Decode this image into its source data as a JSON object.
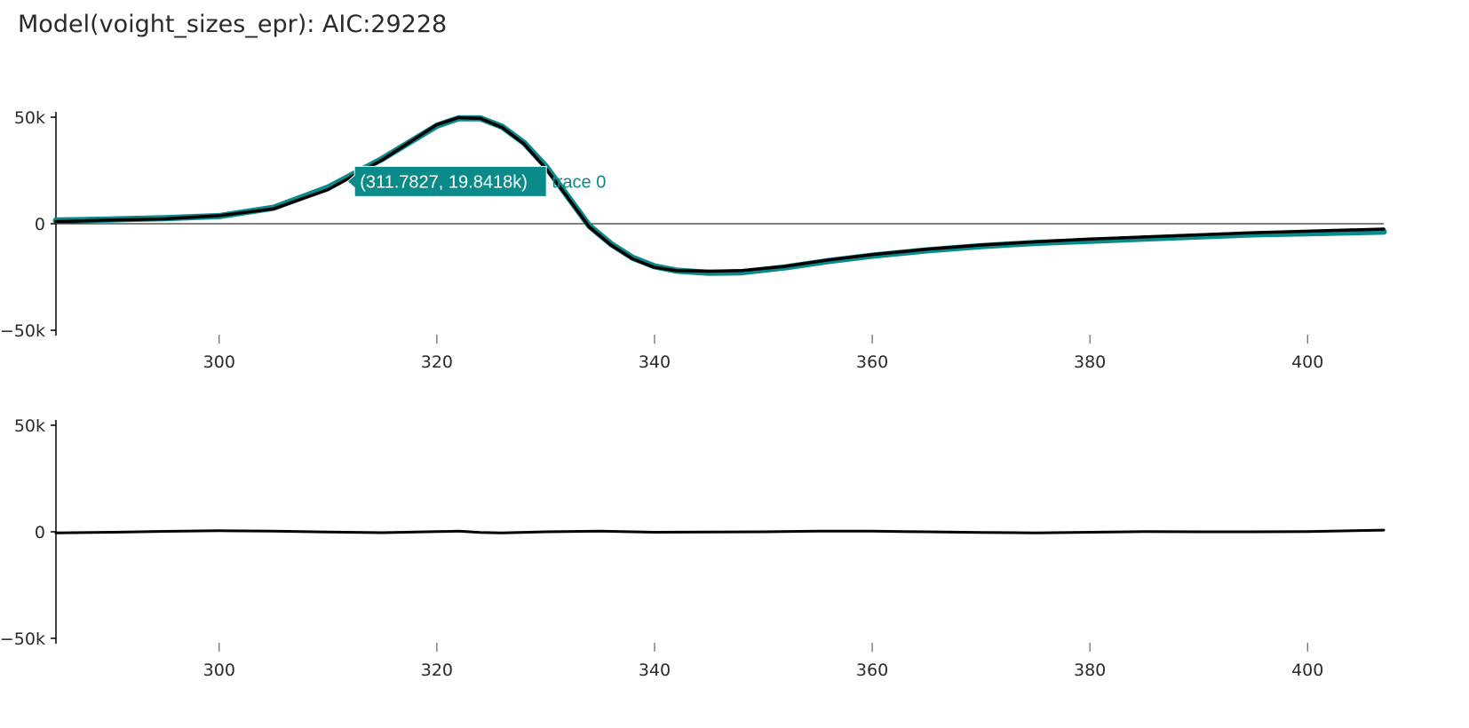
{
  "title": "Model(voight_sizes_epr): AIC:29228",
  "colors": {
    "data_trace": "#0b8a8a",
    "model_trace": "#000000",
    "axis": "#000000"
  },
  "hover": {
    "label": "(311.7827, 19.8418k)",
    "trace_name": "trace 0",
    "x": 311.7827,
    "y": 19841.8
  },
  "chart_data": [
    {
      "type": "line",
      "title": "",
      "xlabel": "",
      "ylabel": "",
      "xlim": [
        285,
        407
      ],
      "ylim": [
        -50000,
        50000
      ],
      "x_ticks": [
        300,
        320,
        340,
        360,
        380,
        400
      ],
      "x_tick_labels": [
        "300",
        "320",
        "340",
        "360",
        "380",
        "400"
      ],
      "y_ticks": [
        50000,
        0,
        -50000
      ],
      "y_tick_labels": [
        "50k",
        "0",
        "−50k"
      ],
      "zero_line": true,
      "grid": false,
      "series": [
        {
          "x": [
            285,
            290,
            295,
            300,
            305,
            310,
            315,
            320,
            322,
            324,
            326,
            328,
            330,
            332,
            334,
            336,
            338,
            340,
            342,
            345,
            348,
            352,
            356,
            360,
            365,
            370,
            375,
            380,
            385,
            390,
            395,
            400,
            407
          ],
          "y": [
            1500,
            2000,
            2600,
            3600,
            7500,
            17000,
            30500,
            46000,
            49500,
            49500,
            45500,
            38000,
            27000,
            13000,
            -1000,
            -9500,
            -16000,
            -20000,
            -22000,
            -23000,
            -22800,
            -20500,
            -17500,
            -15000,
            -12500,
            -10500,
            -9000,
            -8000,
            -7000,
            -6000,
            -5000,
            -4500,
            -3700
          ]
        },
        {
          "x": [
            285,
            290,
            295,
            300,
            305,
            310,
            315,
            320,
            322,
            324,
            326,
            328,
            330,
            332,
            334,
            336,
            338,
            340,
            342,
            345,
            348,
            352,
            356,
            360,
            365,
            370,
            375,
            380,
            385,
            390,
            395,
            400,
            407
          ],
          "y": [
            1000,
            1700,
            2300,
            3800,
            7000,
            16000,
            30000,
            46500,
            49800,
            49400,
            45200,
            37500,
            26000,
            12500,
            -1500,
            -10000,
            -16500,
            -20500,
            -22000,
            -22300,
            -22000,
            -20000,
            -17000,
            -14500,
            -12000,
            -10000,
            -8500,
            -7200,
            -6200,
            -5200,
            -4200,
            -3500,
            -2500
          ]
        }
      ]
    },
    {
      "type": "line",
      "title": "",
      "xlabel": "",
      "ylabel": "",
      "xlim": [
        285,
        407
      ],
      "ylim": [
        -50000,
        50000
      ],
      "x_ticks": [
        300,
        320,
        340,
        360,
        380,
        400
      ],
      "x_tick_labels": [
        "300",
        "320",
        "340",
        "360",
        "380",
        "400"
      ],
      "y_ticks": [
        50000,
        0,
        -50000
      ],
      "y_tick_labels": [
        "50k",
        "0",
        "−50k"
      ],
      "zero_line": false,
      "grid": false,
      "series": [
        {
          "x": [
            285,
            290,
            295,
            300,
            305,
            310,
            315,
            320,
            322,
            324,
            326,
            330,
            335,
            340,
            345,
            350,
            355,
            360,
            365,
            370,
            375,
            380,
            385,
            390,
            395,
            400,
            407
          ],
          "y": [
            -500,
            -200,
            200,
            500,
            300,
            -100,
            -400,
            100,
            300,
            -300,
            -500,
            0,
            300,
            -200,
            -100,
            0,
            300,
            300,
            0,
            -300,
            -500,
            -200,
            100,
            0,
            0,
            100,
            800
          ]
        }
      ]
    }
  ]
}
